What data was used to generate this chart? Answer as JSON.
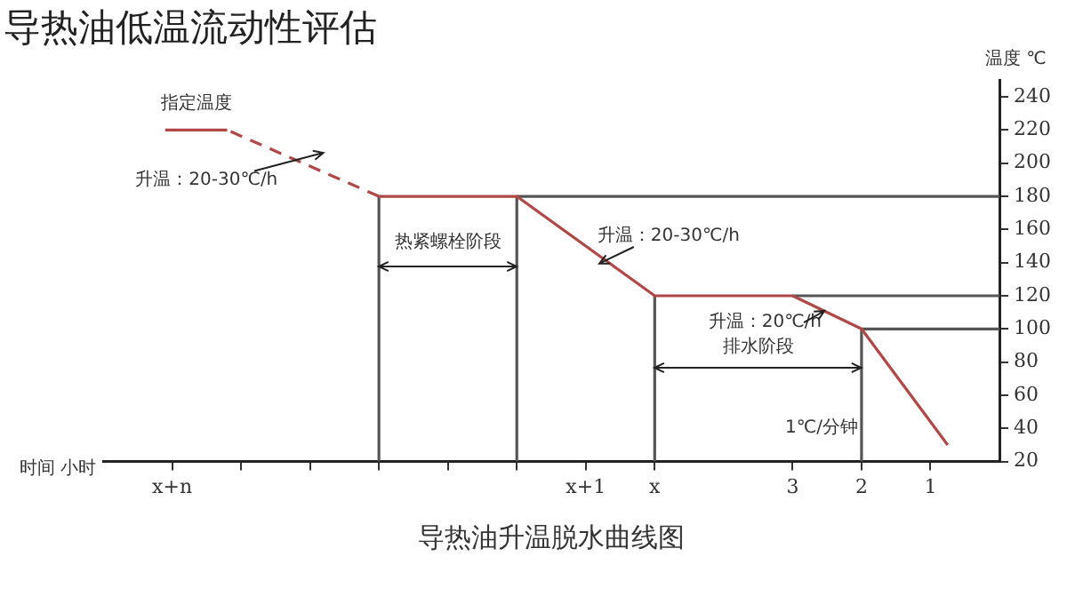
{
  "chart_data": {
    "type": "line",
    "title": "导热油低温流动性评估",
    "xlabel": "时间 小时",
    "ylabel": "温度 ℃",
    "xlim": [
      13,
      0
    ],
    "ylim": [
      20,
      250
    ],
    "xticks": [
      {
        "value": 12,
        "label": "x+n"
      },
      {
        "value": 11,
        "label": null
      },
      {
        "value": 10,
        "label": null
      },
      {
        "value": 9,
        "label": null
      },
      {
        "value": 8,
        "label": null
      },
      {
        "value": 7,
        "label": null
      },
      {
        "value": 6,
        "label": "x+1"
      },
      {
        "value": 5,
        "label": "x"
      },
      3,
      2,
      1
    ],
    "yticks": [
      20,
      40,
      60,
      80,
      100,
      120,
      140,
      160,
      180,
      200,
      220,
      240
    ],
    "grid": false,
    "legend": false,
    "marker": "none",
    "series": [
      {
        "color": "#b04848",
        "x": [
          0.75,
          2,
          3,
          5,
          7,
          9
        ],
        "values": [
          30,
          100,
          120,
          120,
          180,
          180
        ]
      },
      {
        "color": "#b04848",
        "line_style": "dashed",
        "x": [
          9,
          11.2
        ],
        "values": [
          180,
          220
        ]
      },
      {
        "color": "#b04848",
        "x": [
          11.2,
          12.1
        ],
        "values": [
          220,
          220
        ]
      },
      {
        "color": "#555555",
        "x": [
          7,
          0
        ],
        "values": [
          180,
          180
        ]
      },
      {
        "color": "#555555",
        "x": [
          3,
          0
        ],
        "values": [
          120,
          120
        ]
      },
      {
        "color": "#555555",
        "x": [
          2,
          0
        ],
        "values": [
          100,
          100
        ]
      },
      {
        "color": "#555555",
        "x": [
          9,
          9
        ],
        "values": [
          20,
          180
        ]
      },
      {
        "color": "#555555",
        "x": [
          7,
          7
        ],
        "values": [
          20,
          180
        ]
      },
      {
        "color": "#555555",
        "x": [
          5,
          5
        ],
        "values": [
          20,
          120
        ]
      },
      {
        "color": "#555555",
        "x": [
          2,
          2
        ],
        "values": [
          20,
          100
        ]
      }
    ],
    "annotations": [
      "指定温度",
      "升温：20-30℃/h",
      "热紧螺栓阶段",
      "升温：20-30℃/h",
      "升温：20℃/h",
      "排水阶段",
      "1℃/分钟",
      "导热油升温脱水曲线图"
    ]
  }
}
